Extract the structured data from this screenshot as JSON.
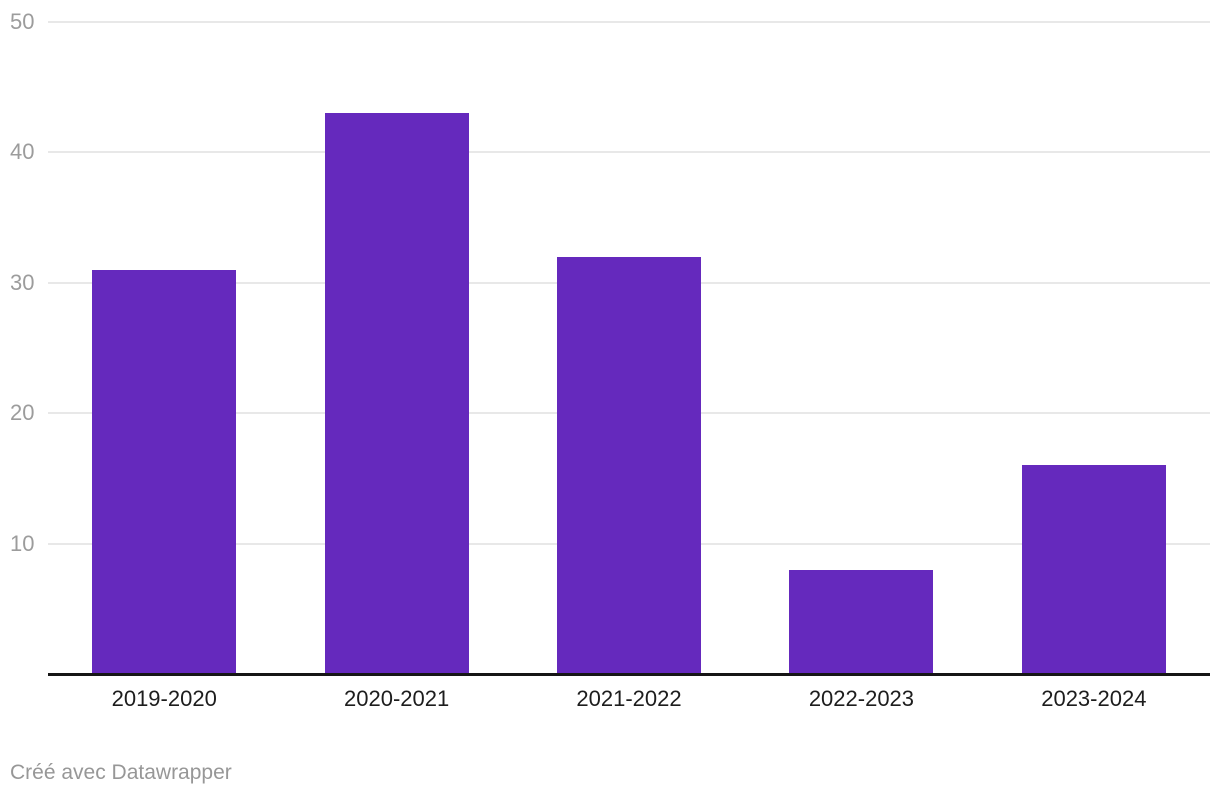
{
  "chart_data": {
    "type": "bar",
    "categories": [
      "2019-2020",
      "2020-2021",
      "2021-2022",
      "2022-2023",
      "2023-2024"
    ],
    "values": [
      31,
      43,
      32,
      8,
      16
    ],
    "title": "",
    "xlabel": "",
    "ylabel": "",
    "ylim": [
      0,
      50
    ],
    "yticks": [
      10,
      20,
      30,
      40,
      50
    ],
    "grid": true,
    "legend": "none",
    "bar_color": "#6529bd",
    "gridline_color": "#e8e8e8",
    "axis_line_color": "#161616",
    "tick_label_color": "#9c9c9c",
    "category_label_color": "#1d1d1d"
  },
  "footer": {
    "attribution": "Créé avec Datawrapper"
  }
}
